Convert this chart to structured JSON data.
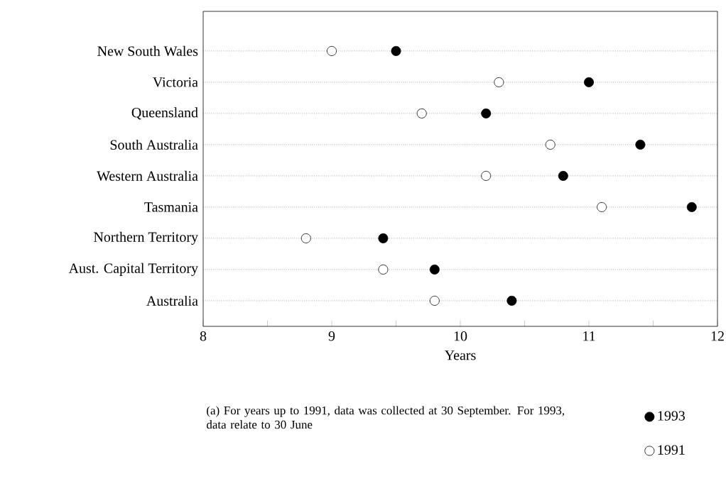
{
  "chart_data": {
    "type": "scatter",
    "orientation": "horizontal",
    "categories": [
      "New South Wales",
      "Victoria",
      "Queensland",
      "South Australia",
      "Western Australia",
      "Tasmania",
      "Northern Territory",
      "Aust. Capital Territory",
      "Australia"
    ],
    "series": [
      {
        "name": "1993",
        "color": "#000000",
        "values": [
          9.5,
          11.0,
          10.2,
          11.4,
          10.8,
          11.8,
          9.4,
          9.8,
          10.4
        ]
      },
      {
        "name": "1991",
        "color": "#ffffff",
        "values": [
          9.0,
          10.3,
          9.7,
          10.7,
          10.2,
          11.1,
          8.8,
          9.4,
          9.8
        ]
      }
    ],
    "xlabel": "Years",
    "xlim": [
      8,
      12
    ],
    "xticks": [
      8,
      {
        "value": 8.5,
        "label": null
      },
      9,
      {
        "value": 9.5,
        "label": null
      },
      10,
      {
        "value": 10.5,
        "label": null
      },
      11,
      {
        "value": 11.5,
        "label": null
      },
      12
    ],
    "grid": "y",
    "marker": "circle",
    "legend": "bottom right",
    "annotations": [
      "(a) For years up to 1991, data was collected at 30 September. For 1993, data relate to 30 June"
    ]
  }
}
